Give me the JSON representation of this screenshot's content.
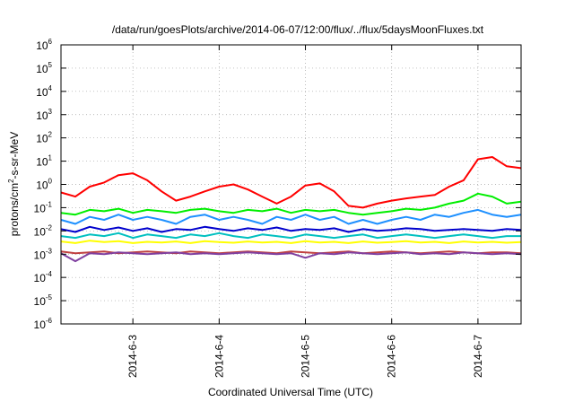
{
  "chart_data": {
    "type": "line",
    "title": "/data/run/goesPlots/archive/2014-06-07/12:00/flux/../flux/5daysMoonFluxes.txt",
    "xlabel": "Coordinated Universal Time (UTC)",
    "ylabel": {
      "pre": "protons/cm",
      "sup": "2",
      "post": "-s-sr-MeV"
    },
    "x_unit": "days (UTC)",
    "xlim": [
      "2014-06-02 04:00",
      "2014-06-07 12:00"
    ],
    "x_ticks": [
      "2014-6-3",
      "2014-6-4",
      "2014-6-5",
      "2014-6-6",
      "2014-6-7"
    ],
    "y_scale": "log",
    "ylim": [
      1e-06,
      1000000.0
    ],
    "y_ticks": [
      {
        "base": "10",
        "exp": "-6",
        "value": 1e-06
      },
      {
        "base": "10",
        "exp": "-5",
        "value": 1e-05
      },
      {
        "base": "10",
        "exp": "-4",
        "value": 0.0001
      },
      {
        "base": "10",
        "exp": "-3",
        "value": 0.001
      },
      {
        "base": "10",
        "exp": "-2",
        "value": 0.01
      },
      {
        "base": "10",
        "exp": "-1",
        "value": 0.1
      },
      {
        "base": "10",
        "exp": "0",
        "value": 1
      },
      {
        "base": "10",
        "exp": "1",
        "value": 10
      },
      {
        "base": "10",
        "exp": "2",
        "value": 100
      },
      {
        "base": "10",
        "exp": "3",
        "value": 1000
      },
      {
        "base": "10",
        "exp": "4",
        "value": 10000
      },
      {
        "base": "10",
        "exp": "5",
        "value": 100000
      },
      {
        "base": "10",
        "exp": "6",
        "value": 1000000
      }
    ],
    "grid": true,
    "x_times": [
      "2014-06-02 04:00",
      "2014-06-02 08:00",
      "2014-06-02 12:00",
      "2014-06-02 16:00",
      "2014-06-02 20:00",
      "2014-06-03 00:00",
      "2014-06-03 04:00",
      "2014-06-03 08:00",
      "2014-06-03 12:00",
      "2014-06-03 16:00",
      "2014-06-03 20:00",
      "2014-06-04 00:00",
      "2014-06-04 04:00",
      "2014-06-04 08:00",
      "2014-06-04 12:00",
      "2014-06-04 16:00",
      "2014-06-04 20:00",
      "2014-06-05 00:00",
      "2014-06-05 04:00",
      "2014-06-05 08:00",
      "2014-06-05 12:00",
      "2014-06-05 16:00",
      "2014-06-05 20:00",
      "2014-06-06 00:00",
      "2014-06-06 04:00",
      "2014-06-06 08:00",
      "2014-06-06 12:00",
      "2014-06-06 16:00",
      "2014-06-06 20:00",
      "2014-06-07 00:00",
      "2014-06-07 04:00",
      "2014-06-07 08:00",
      "2014-06-07 12:00"
    ],
    "series": [
      {
        "color": "#ff0000",
        "values": [
          0.45,
          0.3,
          0.8,
          1.2,
          2.5,
          3.0,
          1.5,
          0.5,
          0.2,
          0.3,
          0.5,
          0.8,
          1.0,
          0.6,
          0.3,
          0.15,
          0.3,
          0.9,
          1.1,
          0.5,
          0.12,
          0.1,
          0.15,
          0.2,
          0.25,
          0.3,
          0.35,
          0.8,
          1.5,
          12,
          15,
          6,
          5
        ]
      },
      {
        "color": "#00ee00",
        "values": [
          0.06,
          0.05,
          0.08,
          0.07,
          0.09,
          0.06,
          0.08,
          0.07,
          0.06,
          0.08,
          0.09,
          0.07,
          0.06,
          0.08,
          0.07,
          0.09,
          0.06,
          0.08,
          0.07,
          0.08,
          0.06,
          0.05,
          0.06,
          0.07,
          0.09,
          0.08,
          0.1,
          0.15,
          0.2,
          0.4,
          0.3,
          0.15,
          0.18
        ]
      },
      {
        "color": "#1e90ff",
        "values": [
          0.03,
          0.02,
          0.04,
          0.03,
          0.05,
          0.03,
          0.04,
          0.03,
          0.02,
          0.04,
          0.05,
          0.03,
          0.04,
          0.03,
          0.02,
          0.04,
          0.03,
          0.05,
          0.03,
          0.04,
          0.02,
          0.03,
          0.02,
          0.03,
          0.04,
          0.03,
          0.05,
          0.04,
          0.06,
          0.08,
          0.05,
          0.04,
          0.05
        ]
      },
      {
        "color": "#0000cc",
        "values": [
          0.012,
          0.009,
          0.015,
          0.011,
          0.014,
          0.01,
          0.013,
          0.009,
          0.012,
          0.011,
          0.015,
          0.012,
          0.01,
          0.013,
          0.011,
          0.014,
          0.01,
          0.012,
          0.011,
          0.013,
          0.009,
          0.012,
          0.01,
          0.011,
          0.013,
          0.012,
          0.01,
          0.011,
          0.012,
          0.011,
          0.01,
          0.012,
          0.011
        ]
      },
      {
        "color": "#00c0c0",
        "values": [
          0.006,
          0.005,
          0.007,
          0.006,
          0.008,
          0.005,
          0.007,
          0.006,
          0.005,
          0.007,
          0.006,
          0.008,
          0.006,
          0.005,
          0.007,
          0.006,
          0.005,
          0.007,
          0.006,
          0.005,
          0.006,
          0.007,
          0.005,
          0.006,
          0.007,
          0.006,
          0.005,
          0.006,
          0.007,
          0.006,
          0.005,
          0.006,
          0.006
        ]
      },
      {
        "color": "#ffff00",
        "values": [
          0.0035,
          0.003,
          0.0038,
          0.0033,
          0.0036,
          0.003,
          0.0034,
          0.0032,
          0.0035,
          0.003,
          0.0036,
          0.0033,
          0.0031,
          0.0035,
          0.0032,
          0.0034,
          0.003,
          0.0036,
          0.0032,
          0.0034,
          0.003,
          0.0035,
          0.0031,
          0.0033,
          0.0036,
          0.0032,
          0.0034,
          0.003,
          0.0035,
          0.0032,
          0.0034,
          0.0031,
          0.0033
        ]
      },
      {
        "color": "#c04040",
        "values": [
          0.0013,
          0.0011,
          0.0012,
          0.0013,
          0.0011,
          0.0012,
          0.0013,
          0.0012,
          0.0011,
          0.0013,
          0.0012,
          0.0011,
          0.0012,
          0.0013,
          0.0012,
          0.0011,
          0.0013,
          0.0012,
          0.0011,
          0.0012,
          0.0013,
          0.0011,
          0.0012,
          0.0013,
          0.0012,
          0.0011,
          0.0012,
          0.0013,
          0.0012,
          0.0011,
          0.0012,
          0.0012,
          0.0011
        ]
      },
      {
        "color": "#8040a0",
        "values": [
          0.0011,
          0.0005,
          0.0011,
          0.001,
          0.0012,
          0.0011,
          0.001,
          0.0011,
          0.0012,
          0.001,
          0.0011,
          0.001,
          0.0011,
          0.0012,
          0.0011,
          0.001,
          0.0011,
          0.0007,
          0.0011,
          0.001,
          0.0012,
          0.0011,
          0.001,
          0.0011,
          0.0012,
          0.001,
          0.0011,
          0.001,
          0.0012,
          0.0011,
          0.001,
          0.0011,
          0.001
        ]
      }
    ]
  }
}
